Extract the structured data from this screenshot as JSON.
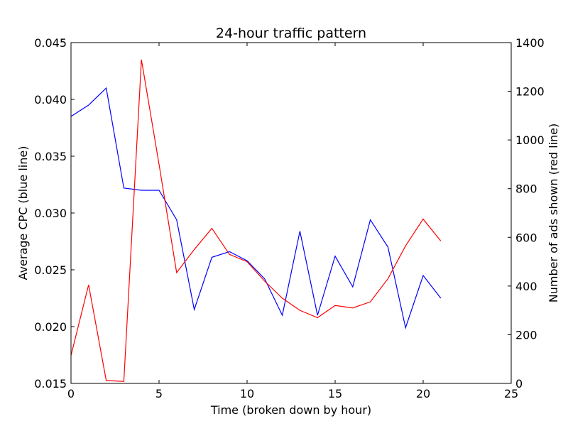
{
  "chart_data": {
    "type": "line",
    "title": "24-hour traffic pattern",
    "xlabel": "Time (broken down by hour)",
    "ylabel_left": "Average CPC (blue line)",
    "ylabel_right": "Number of ads shown (red line)",
    "xlim": [
      0,
      25
    ],
    "ylim_left": [
      0.015,
      0.045
    ],
    "ylim_right": [
      0,
      1400
    ],
    "x_ticks": [
      "0",
      "5",
      "10",
      "15",
      "20",
      "25"
    ],
    "y_left_ticks": [
      "0.015",
      "0.020",
      "0.025",
      "0.030",
      "0.035",
      "0.040",
      "0.045"
    ],
    "y_right_ticks": [
      "0",
      "200",
      "400",
      "600",
      "800",
      "1000",
      "1200",
      "1400"
    ],
    "grid": false,
    "x": [
      0,
      1,
      2,
      3,
      4,
      5,
      6,
      7,
      8,
      9,
      10,
      11,
      12,
      13,
      14,
      15,
      16,
      17,
      18,
      19,
      20,
      21
    ],
    "series": [
      {
        "axis": "left",
        "color": "#0000ff",
        "values": [
          0.0385,
          0.0395,
          0.041,
          0.0322,
          0.032,
          0.032,
          0.0294,
          0.0215,
          0.0261,
          0.0266,
          0.0258,
          0.0242,
          0.021,
          0.0284,
          0.021,
          0.0262,
          0.0235,
          0.0294,
          0.027,
          0.0199,
          0.0245,
          0.0225
        ]
      },
      {
        "axis": "right",
        "color": "#ff0000",
        "values": [
          115,
          405,
          12,
          8,
          1330,
          900,
          455,
          550,
          637,
          530,
          500,
          420,
          350,
          300,
          270,
          320,
          310,
          335,
          430,
          565,
          675,
          585
        ]
      }
    ]
  }
}
